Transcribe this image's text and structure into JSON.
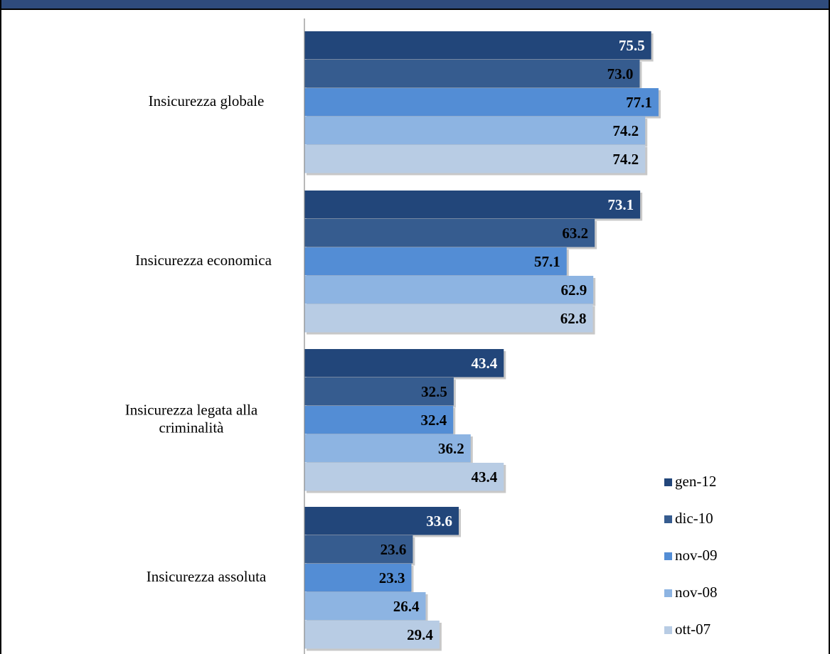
{
  "chart_data": {
    "type": "bar",
    "orientation": "horizontal",
    "categories": [
      "Insicurezza globale",
      "Insicurezza economica",
      "Insicurezza legata alla criminalità",
      "Insicurezza assoluta"
    ],
    "category_label_lines": [
      [
        "Insicurezza globale"
      ],
      [
        "Insicurezza economica"
      ],
      [
        "Insicurezza legata alla",
        "criminalità"
      ],
      [
        "Insicurezza assoluta"
      ]
    ],
    "series": [
      {
        "name": "gen-12",
        "color": "#22467a",
        "label_color": "#ffffff",
        "values": [
          75.5,
          73.1,
          43.4,
          33.6
        ]
      },
      {
        "name": "dic-10",
        "color": "#365c8f",
        "label_color": "#000000",
        "values": [
          73.0,
          63.2,
          32.5,
          23.6
        ]
      },
      {
        "name": "nov-09",
        "color": "#538dd5",
        "label_color": "#000000",
        "values": [
          77.1,
          57.1,
          32.4,
          23.3
        ]
      },
      {
        "name": "nov-08",
        "color": "#8db4e2",
        "label_color": "#000000",
        "values": [
          74.2,
          62.9,
          36.2,
          26.4
        ]
      },
      {
        "name": "ott-07",
        "color": "#b8cce4",
        "label_color": "#000000",
        "values": [
          74.2,
          62.8,
          43.4,
          29.4
        ]
      }
    ],
    "value_labels": [
      [
        "75.5",
        "73.1",
        "43.4",
        "33.6"
      ],
      [
        "73.0",
        "63.2",
        "32.5",
        "23.6"
      ],
      [
        "77.1",
        "57.1",
        "32.4",
        "23.3"
      ],
      [
        "74.2",
        "62.9",
        "36.2",
        "26.4"
      ],
      [
        "74.2",
        "62.8",
        "43.4",
        "29.4"
      ]
    ],
    "xlim": [
      0,
      100
    ],
    "grid": false,
    "legend_position": "bottom-right"
  }
}
